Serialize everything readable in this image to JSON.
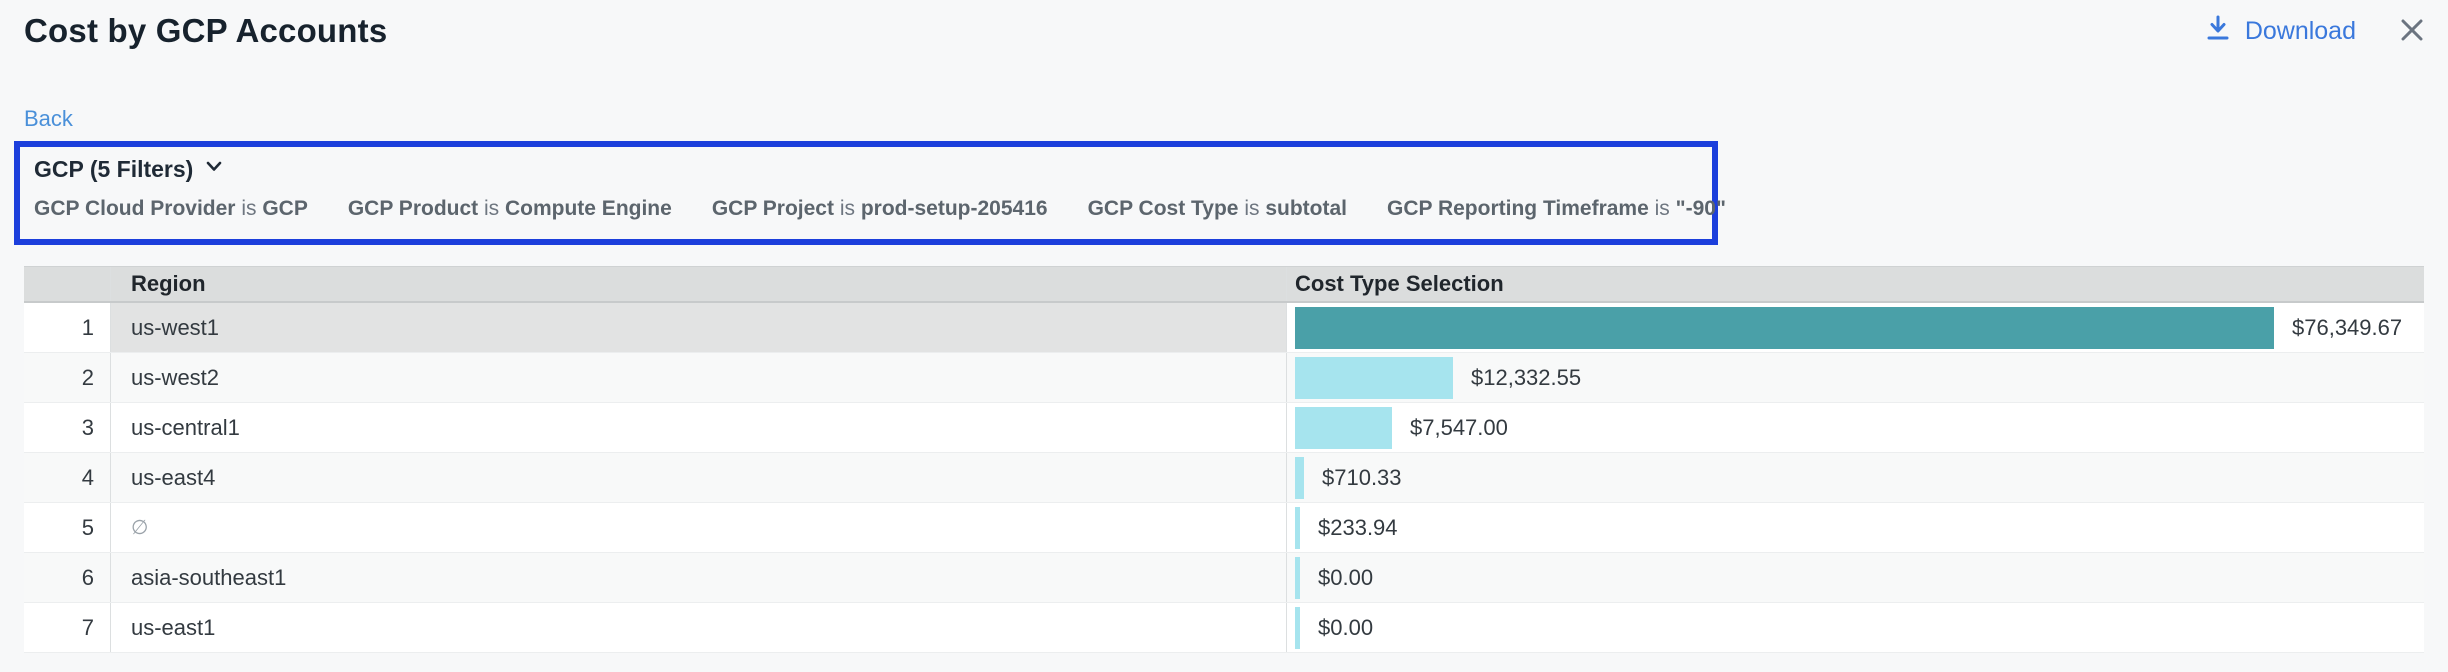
{
  "header": {
    "title": "Cost by GCP Accounts",
    "download_label": "Download"
  },
  "nav": {
    "back_label": "Back"
  },
  "filter_bar": {
    "summary_label": "GCP (5 Filters)",
    "filters": [
      {
        "field": "GCP Cloud Provider",
        "op": "is",
        "value": "GCP"
      },
      {
        "field": "GCP Product",
        "op": "is",
        "value": "Compute Engine"
      },
      {
        "field": "GCP Project",
        "op": "is",
        "value": "prod-setup-205416"
      },
      {
        "field": "GCP Cost Type",
        "op": "is",
        "value": "subtotal"
      },
      {
        "field": "GCP Reporting Timeframe",
        "op": "is",
        "value": "\"-90\""
      }
    ]
  },
  "table": {
    "columns": [
      "Region",
      "Cost Type Selection"
    ],
    "rows": [
      {
        "num": "1",
        "region": "us-west1",
        "region_null": false,
        "value": 76349.67,
        "value_label": "$76,349.67",
        "selected": true
      },
      {
        "num": "2",
        "region": "us-west2",
        "region_null": false,
        "value": 12332.55,
        "value_label": "$12,332.55",
        "selected": false
      },
      {
        "num": "3",
        "region": "us-central1",
        "region_null": false,
        "value": 7547.0,
        "value_label": "$7,547.00",
        "selected": false
      },
      {
        "num": "4",
        "region": "us-east4",
        "region_null": false,
        "value": 710.33,
        "value_label": "$710.33",
        "selected": false
      },
      {
        "num": "5",
        "region": "∅",
        "region_null": true,
        "value": 233.94,
        "value_label": "$233.94",
        "selected": false
      },
      {
        "num": "6",
        "region": "asia-southeast1",
        "region_null": false,
        "value": 0,
        "value_label": "$0.00",
        "selected": false
      },
      {
        "num": "7",
        "region": "us-east1",
        "region_null": false,
        "value": 0,
        "value_label": "$0.00",
        "selected": false
      }
    ]
  },
  "chart_data": {
    "type": "bar",
    "orientation": "horizontal",
    "title": "Cost by GCP Accounts",
    "categories": [
      "us-west1",
      "us-west2",
      "us-central1",
      "us-east4",
      "∅",
      "asia-southeast1",
      "us-east1"
    ],
    "values": [
      76349.67,
      12332.55,
      7547.0,
      710.33,
      233.94,
      0.0,
      0.0
    ],
    "value_labels": [
      "$76,349.67",
      "$12,332.55",
      "$7,547.00",
      "$710.33",
      "$233.94",
      "$0.00",
      "$0.00"
    ],
    "xlabel": "Cost Type Selection",
    "ylabel": "Region",
    "xlim": [
      0,
      76349.67
    ],
    "grid": false,
    "legend": false
  },
  "colors": {
    "bar_selected": "#4aa0a8",
    "bar_default": "#a6e4ee",
    "filter_box_border": "#1c3fdc",
    "download_blue": "#3a78dc",
    "back_link_blue": "#4a90d9",
    "header_bg": "#dbdddd",
    "selected_cell_bg": "#e2e3e3"
  }
}
